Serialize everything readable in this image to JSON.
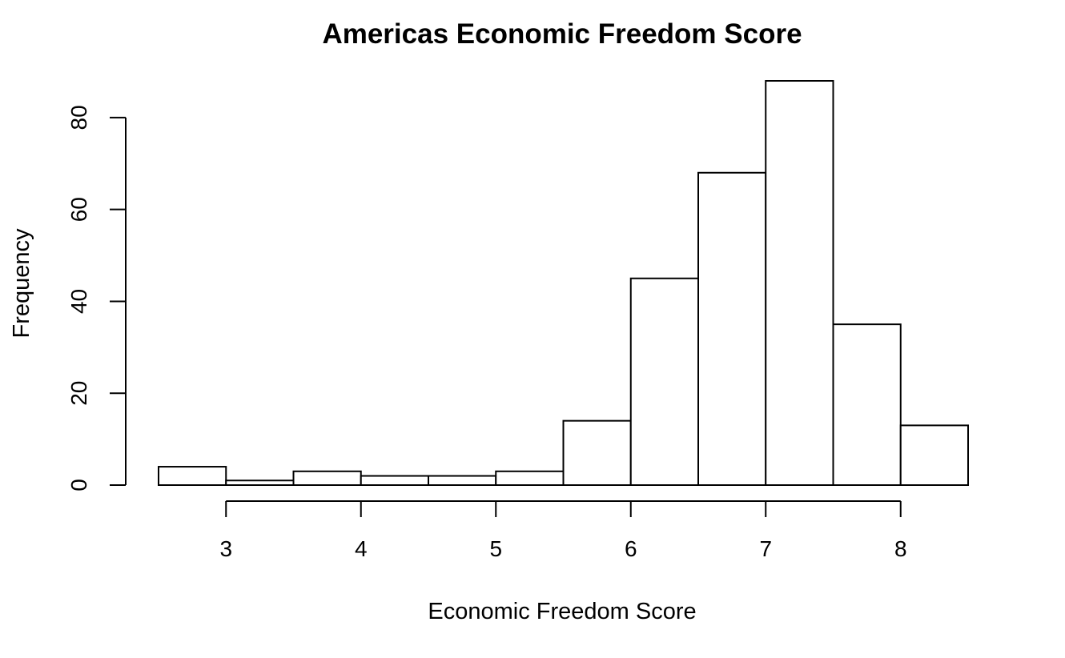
{
  "chart_data": {
    "type": "bar",
    "title": "Americas Economic Freedom Score",
    "xlabel": "Economic Freedom Score",
    "ylabel": "Frequency",
    "bin_edges": [
      2.5,
      3.0,
      3.5,
      4.0,
      4.5,
      5.0,
      5.5,
      6.0,
      6.5,
      7.0,
      7.5,
      8.0,
      8.5
    ],
    "values": [
      4,
      1,
      3,
      2,
      2,
      3,
      14,
      45,
      68,
      88,
      35,
      13
    ],
    "xlim": [
      2.5,
      8.5
    ],
    "ylim": [
      0,
      88
    ],
    "x_ticks": [
      3,
      4,
      5,
      6,
      7,
      8
    ],
    "y_ticks": [
      0,
      20,
      40,
      60,
      80
    ],
    "grid": false,
    "colors": {
      "bar_fill": "#ffffff",
      "bar_stroke": "#000000"
    }
  }
}
